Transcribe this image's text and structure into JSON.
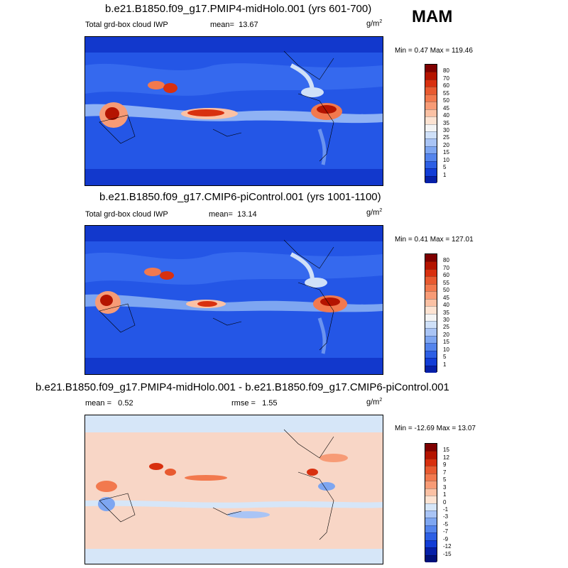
{
  "season": "MAM",
  "panels": [
    {
      "title": "b.e21.B1850.f09_g17.PMIP4-midHolo.001 (yrs 601-700)",
      "variable": "Total grd-box cloud IWP",
      "mean_label": "mean=",
      "mean_value": "13.67",
      "units": "g/m",
      "units_exp": "2",
      "minmax": "Min =   0.47 Max = 119.46",
      "colorbar_labels": [
        "80",
        "70",
        "60",
        "55",
        "50",
        "45",
        "40",
        "35",
        "30",
        "25",
        "20",
        "15",
        "10",
        "5",
        "1"
      ],
      "colorbar_colors": [
        "#7f0000",
        "#b41400",
        "#d8300f",
        "#e85a30",
        "#f2794e",
        "#f79b76",
        "#fbc1a4",
        "#fde3d2",
        "#f4f4f4",
        "#cfe0f8",
        "#a9c4f5",
        "#7ea6f1",
        "#5484ec",
        "#2d5fe4",
        "#123dd6",
        "#0620a8"
      ]
    },
    {
      "title": "b.e21.B1850.f09_g17.CMIP6-piControl.001 (yrs 1001-1100)",
      "variable": "Total grd-box cloud IWP",
      "mean_label": "mean=",
      "mean_value": "13.14",
      "units": "g/m",
      "units_exp": "2",
      "minmax": "Min =   0.41 Max = 127.01",
      "colorbar_labels": [
        "80",
        "70",
        "60",
        "55",
        "50",
        "45",
        "40",
        "35",
        "30",
        "25",
        "20",
        "15",
        "10",
        "5",
        "1"
      ],
      "colorbar_colors": [
        "#7f0000",
        "#b41400",
        "#d8300f",
        "#e85a30",
        "#f2794e",
        "#f79b76",
        "#fbc1a4",
        "#fde3d2",
        "#f4f4f4",
        "#cfe0f8",
        "#a9c4f5",
        "#7ea6f1",
        "#5484ec",
        "#2d5fe4",
        "#123dd6",
        "#0620a8"
      ]
    },
    {
      "title": "b.e21.B1850.f09_g17.PMIP4-midHolo.001 - b.e21.B1850.f09_g17.CMIP6-piControl.001",
      "mean_label": "mean =",
      "mean_value": "0.52",
      "rmse_label": "rmse =",
      "rmse_value": "1.55",
      "units": "g/m",
      "units_exp": "2",
      "minmax": "Min = -12.69 Max =  13.07",
      "colorbar_labels": [
        "15",
        "12",
        "9",
        "7",
        "5",
        "3",
        "1",
        "0",
        "-1",
        "-3",
        "-5",
        "-7",
        "-9",
        "-12",
        "-15"
      ],
      "colorbar_colors": [
        "#7f0000",
        "#b41400",
        "#d8300f",
        "#e85a30",
        "#f2794e",
        "#f79b76",
        "#fbc1a4",
        "#fde3d2",
        "#d6e6f8",
        "#a9c4f5",
        "#7ea6f1",
        "#5484ec",
        "#2d5fe4",
        "#123dd6",
        "#0620a8",
        "#00107a"
      ]
    }
  ]
}
